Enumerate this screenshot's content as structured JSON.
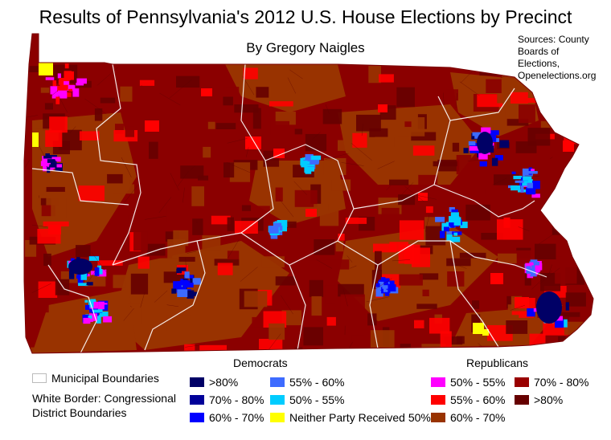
{
  "title": "Results of Pennsylvania's 2012 U.S. House Elections by Precinct",
  "author": "By Gregory Naigles",
  "sources": [
    "Sources: County",
    "Boards of",
    "Elections,",
    "Openelections.org"
  ],
  "legend": {
    "municipal": "Municipal Boundaries",
    "white_border": [
      "White Border: Congressional",
      "District Boundaries"
    ],
    "democrats_title": "Democrats",
    "republicans_title": "Republicans",
    "dem": [
      {
        "label": ">80%",
        "color": "#000066"
      },
      {
        "label": "70% - 80%",
        "color": "#000099"
      },
      {
        "label": "60% - 70%",
        "color": "#0000ff"
      },
      {
        "label": "55% - 60%",
        "color": "#3d6bff"
      },
      {
        "label": "50% - 55%",
        "color": "#00ccff"
      },
      {
        "label": "Neither Party Received 50%",
        "color": "#ffff00"
      }
    ],
    "rep": [
      {
        "label": "50% - 55%",
        "color": "#ff00ff"
      },
      {
        "label": "55% - 60%",
        "color": "#ff0000"
      },
      {
        "label": "60% - 70%",
        "color": "#993300"
      },
      {
        "label": "70% - 80%",
        "color": "#990000"
      },
      {
        "label": ">80%",
        "color": "#660000"
      }
    ]
  },
  "colors": {
    "rep_base": "#8b0000",
    "rep_brown": "#993300",
    "rep_dark": "#660000",
    "rep_red": "#ff0000",
    "rep_magenta": "#ff00ff",
    "dem_navy": "#000066",
    "dem_blue": "#0000ff",
    "dem_light": "#3d6bff",
    "dem_cyan": "#00ccff",
    "neither": "#ffff00"
  }
}
